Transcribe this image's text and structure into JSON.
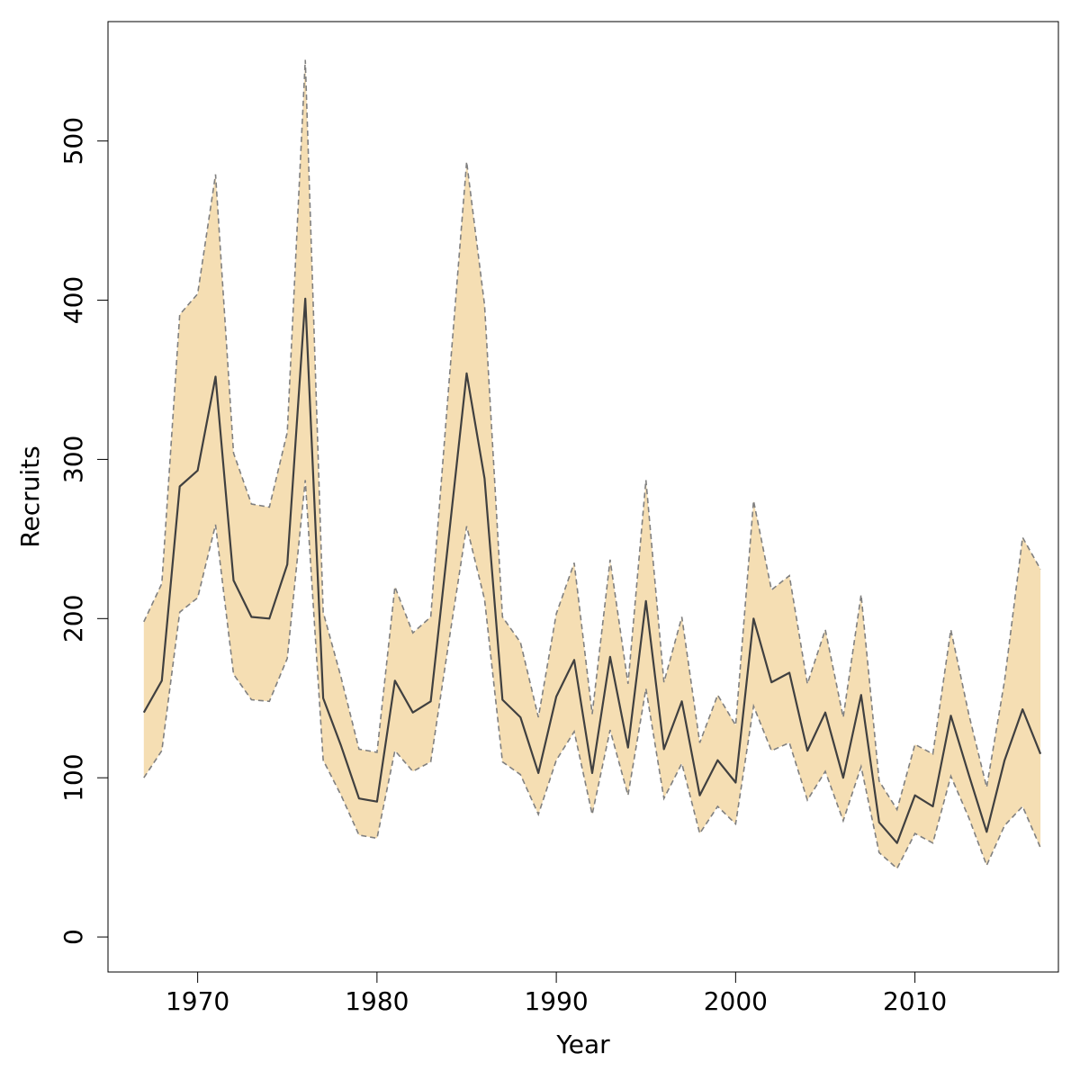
{
  "chart_data": {
    "type": "area",
    "xlabel": "Year",
    "ylabel": "Recruits",
    "xlim": [
      1965,
      2018
    ],
    "ylim": [
      -22,
      575
    ],
    "x_ticks": [
      1970,
      1980,
      1990,
      2000,
      2010
    ],
    "y_ticks": [
      0,
      100,
      200,
      300,
      400,
      500
    ],
    "grid": false,
    "colors": {
      "band": "#f5deb3",
      "line": "#404040",
      "bound": "#808080"
    },
    "x": [
      1967,
      1968,
      1969,
      1970,
      1971,
      1972,
      1973,
      1974,
      1975,
      1976,
      1977,
      1978,
      1979,
      1980,
      1981,
      1982,
      1983,
      1984,
      1985,
      1986,
      1987,
      1988,
      1989,
      1990,
      1991,
      1992,
      1993,
      1994,
      1995,
      1996,
      1997,
      1998,
      1999,
      2000,
      2001,
      2002,
      2003,
      2004,
      2005,
      2006,
      2007,
      2008,
      2009,
      2010,
      2011,
      2012,
      2013,
      2014,
      2015,
      2016,
      2017
    ],
    "series": [
      {
        "role": "estimate",
        "values": [
          141,
          161,
          283,
          293,
          352,
          224,
          201,
          200,
          234,
          401,
          150,
          120,
          87,
          85,
          161,
          141,
          148,
          251,
          354,
          288,
          149,
          138,
          103,
          151,
          174,
          103,
          176,
          119,
          211,
          118,
          148,
          89,
          111,
          97,
          200,
          160,
          166,
          117,
          141,
          100,
          152,
          72,
          59,
          89,
          82,
          139,
          102,
          66,
          111,
          143,
          115
        ]
      },
      {
        "role": "upper",
        "values": [
          198,
          222,
          391,
          404,
          479,
          304,
          272,
          270,
          317,
          551,
          204,
          163,
          118,
          116,
          220,
          191,
          201,
          346,
          487,
          397,
          201,
          185,
          138,
          203,
          235,
          140,
          237,
          159,
          287,
          160,
          201,
          122,
          152,
          133,
          274,
          218,
          227,
          159,
          193,
          138,
          215,
          98,
          80,
          121,
          115,
          193,
          140,
          94,
          161,
          251,
          231
        ]
      },
      {
        "role": "lower",
        "values": [
          100,
          117,
          204,
          213,
          259,
          165,
          149,
          148,
          175,
          287,
          111,
          89,
          64,
          62,
          117,
          104,
          110,
          185,
          258,
          212,
          110,
          102,
          77,
          111,
          129,
          77,
          130,
          89,
          156,
          87,
          109,
          65,
          82,
          71,
          145,
          117,
          122,
          86,
          104,
          73,
          107,
          53,
          43,
          65,
          59,
          101,
          75,
          45,
          70,
          82,
          56
        ]
      }
    ]
  }
}
